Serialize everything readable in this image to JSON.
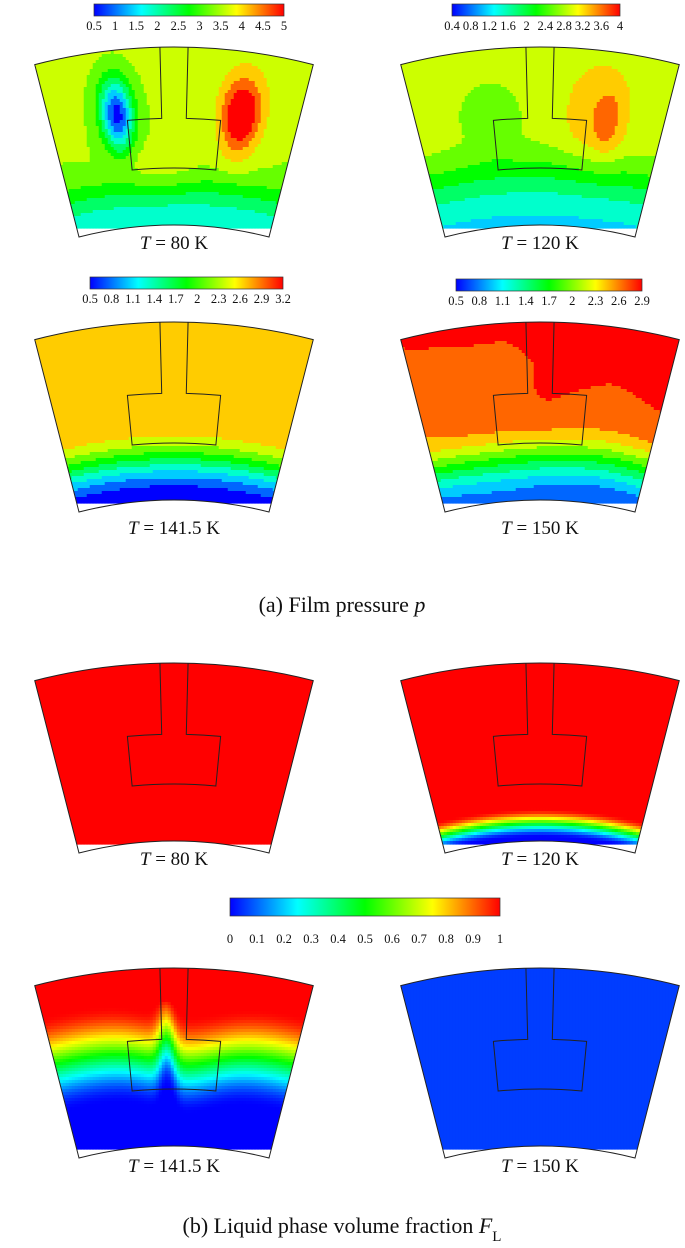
{
  "colors": {
    "colormap": [
      "#0000ff",
      "#0080ff",
      "#00ffff",
      "#00ff80",
      "#00ff00",
      "#80ff00",
      "#ffff00",
      "#ff8000",
      "#ff0000"
    ],
    "outline": "#222222"
  },
  "part_a": {
    "caption": {
      "prefix": "(a) Film pressure ",
      "symbol": "p"
    },
    "panels": [
      {
        "label": {
          "var": "T",
          "value": " = 80 K"
        },
        "colorbar": {
          "ticks": [
            "0.5",
            "1",
            "1.5",
            "2",
            "2.5",
            "3",
            "3.5",
            "4",
            "4.5",
            "5"
          ]
        },
        "field": "p80"
      },
      {
        "label": {
          "var": "T",
          "value": " = 120 K"
        },
        "colorbar": {
          "ticks": [
            "0.4",
            "0.8",
            "1.2",
            "1.6",
            "2",
            "2.4",
            "2.8",
            "3.2",
            "3.6",
            "4"
          ]
        },
        "field": "p120"
      },
      {
        "label": {
          "var": "T",
          "value": " = 141.5 K"
        },
        "colorbar": {
          "ticks": [
            "0.5",
            "0.8",
            "1.1",
            "1.4",
            "1.7",
            "2",
            "2.3",
            "2.6",
            "2.9",
            "3.2"
          ]
        },
        "field": "p141"
      },
      {
        "label": {
          "var": "T",
          "value": " = 150 K"
        },
        "colorbar": {
          "ticks": [
            "0.5",
            "0.8",
            "1.1",
            "1.4",
            "1.7",
            "2",
            "2.3",
            "2.6",
            "2.9"
          ]
        },
        "field": "p150"
      }
    ]
  },
  "part_b": {
    "caption": {
      "prefix": "(b) Liquid phase volume fraction ",
      "symbol": "F",
      "subscript": "L"
    },
    "colorbar": {
      "ticks": [
        "0",
        "0.1",
        "0.2",
        "0.3",
        "0.4",
        "0.5",
        "0.6",
        "0.7",
        "0.8",
        "0.9",
        "1"
      ]
    },
    "panels": [
      {
        "label": {
          "var": "T",
          "value": " = 80 K"
        },
        "field": "f80"
      },
      {
        "label": {
          "var": "T",
          "value": " = 120 K"
        },
        "field": "f120"
      },
      {
        "label": {
          "var": "T",
          "value": " = 141.5 K"
        },
        "field": "f141"
      },
      {
        "label": {
          "var": "T",
          "value": " = 150 K"
        },
        "field": "f150"
      }
    ]
  }
}
